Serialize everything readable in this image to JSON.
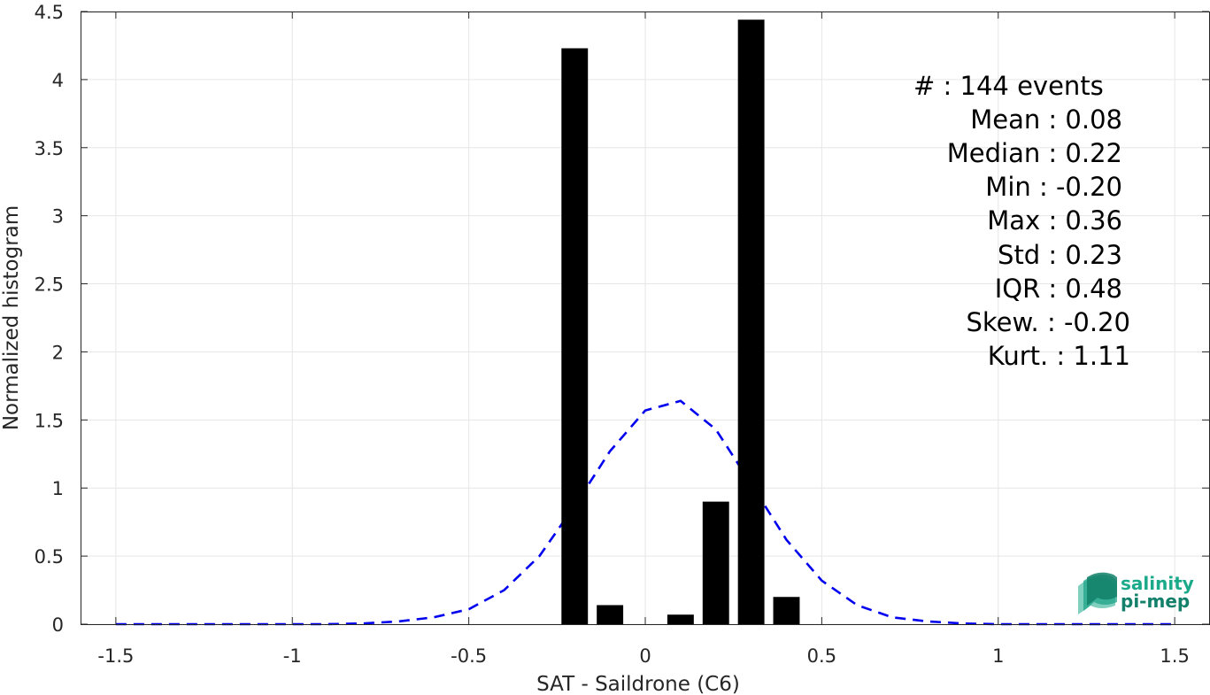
{
  "chart_data": {
    "type": "bar",
    "xlabel": "SAT - Saildrone (C6)",
    "ylabel": "Normalized histogram",
    "xlim": [
      -1.6,
      1.6
    ],
    "ylim": [
      0,
      4.5
    ],
    "xticks": [
      -1.5,
      -1,
      -0.5,
      0,
      0.5,
      1,
      1.5
    ],
    "xtick_labels": [
      "-1.5",
      "-1",
      "-0.5",
      "0",
      "0.5",
      "1",
      "1.5"
    ],
    "yticks": [
      0,
      0.5,
      1,
      1.5,
      2,
      2.5,
      3,
      3.5,
      4,
      4.5
    ],
    "ytick_labels": [
      "0",
      "0.5",
      "1",
      "1.5",
      "2",
      "2.5",
      "3",
      "3.5",
      "4",
      "4.5"
    ],
    "grid": true,
    "bar_width": 0.075,
    "bar_color": "#000000",
    "bars": [
      {
        "x": -0.2,
        "value": 4.23
      },
      {
        "x": -0.1,
        "value": 0.14
      },
      {
        "x": 0.1,
        "value": 0.07
      },
      {
        "x": 0.2,
        "value": 0.9
      },
      {
        "x": 0.3,
        "value": 4.44
      },
      {
        "x": 0.4,
        "value": 0.2
      }
    ],
    "curve": {
      "style": "dashed",
      "color": "#0000ee",
      "x": [
        -1.5,
        -1.4,
        -1.3,
        -1.2,
        -1.1,
        -1.0,
        -0.9,
        -0.8,
        -0.7,
        -0.6,
        -0.5,
        -0.4,
        -0.3,
        -0.2,
        -0.1,
        0.0,
        0.1,
        0.2,
        0.3,
        0.4,
        0.5,
        0.6,
        0.7,
        0.8,
        0.9,
        1.0,
        1.1,
        1.2,
        1.3,
        1.4,
        1.5
      ],
      "y": [
        0.0,
        0.0,
        0.0,
        0.0,
        0.0,
        0.0,
        0.0,
        0.005,
        0.02,
        0.05,
        0.11,
        0.25,
        0.5,
        0.87,
        1.27,
        1.57,
        1.64,
        1.43,
        1.03,
        0.62,
        0.32,
        0.14,
        0.05,
        0.02,
        0.005,
        0.0,
        0.0,
        0.0,
        0.0,
        0.0,
        0.0
      ]
    },
    "stats": [
      "#  : 144 events",
      "Mean : 0.08",
      "Median : 0.22",
      "Min : -0.20",
      "Max : 0.36",
      "Std : 0.23",
      "IQR : 0.48",
      "Skew. : -0.20",
      "Kurt. : 1.11"
    ]
  },
  "logo": {
    "line1": "salinity",
    "line2": "pi-mep",
    "color_top": "#1aaa8a",
    "color_bottom": "#12806a"
  }
}
